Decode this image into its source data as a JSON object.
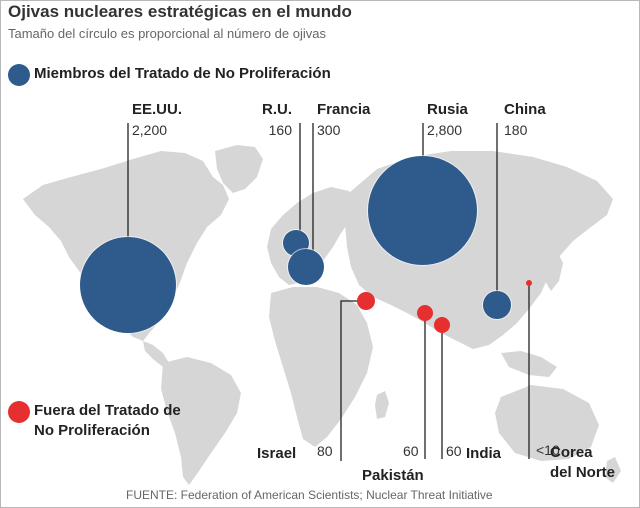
{
  "title": "Ojivas nucleares estratégicas en el mundo",
  "subtitle": "Tamaño del círculo es proporcional al número de ojivas",
  "legend": {
    "members": "Miembros del Tratado de No Proliferación",
    "non_members_line1": "Fuera del Tratado de",
    "non_members_line2": "No Proliferación"
  },
  "colors": {
    "member": "#2f5b8c",
    "non_member": "#e5302f",
    "land": "#d6d6d6",
    "leader": "#222222"
  },
  "countries": [
    {
      "name": "EE.UU.",
      "warheads": "2,200",
      "value": 2200,
      "group": "member"
    },
    {
      "name": "R.U.",
      "warheads": "160",
      "value": 160,
      "group": "member"
    },
    {
      "name": "Francia",
      "warheads": "300",
      "value": 300,
      "group": "member"
    },
    {
      "name": "Rusia",
      "warheads": "2,800",
      "value": 2800,
      "group": "member"
    },
    {
      "name": "China",
      "warheads": "180",
      "value": 180,
      "group": "member"
    },
    {
      "name": "Israel",
      "warheads": "80",
      "value": 80,
      "group": "non_member"
    },
    {
      "name": "Pakistán",
      "warheads": "60",
      "value": 60,
      "group": "non_member"
    },
    {
      "name": "India",
      "warheads": "60",
      "value": 60,
      "group": "non_member"
    },
    {
      "name": "Corea",
      "name2": "del Norte",
      "warheads": "<10",
      "value": 10,
      "group": "non_member"
    }
  ],
  "source": "FUENTE: Federation of American Scientists; Nuclear Threat Initiative"
}
